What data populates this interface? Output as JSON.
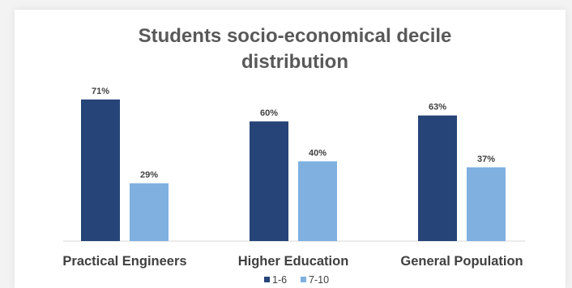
{
  "chart_data": {
    "type": "bar",
    "title_lines": [
      "Students socio-economical decile",
      "distribution"
    ],
    "categories": [
      "Practical Engineers",
      "Higher Education",
      "General Population"
    ],
    "series": [
      {
        "name": "1-6",
        "values": [
          71,
          60,
          63
        ],
        "labels": [
          "71%",
          "60%",
          "63%"
        ],
        "color": "#264478"
      },
      {
        "name": "7-10",
        "values": [
          29,
          40,
          37
        ],
        "labels": [
          "29%",
          "40%",
          "37%"
        ],
        "color": "#7FB0E0"
      }
    ],
    "ylim": [
      0,
      100
    ],
    "grid": false,
    "legend_position": "bottom"
  }
}
